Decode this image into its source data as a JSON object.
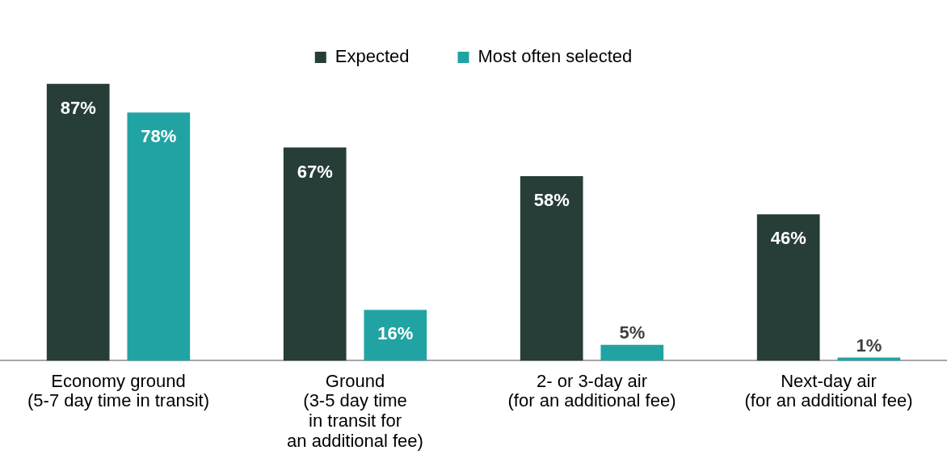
{
  "chart_data": {
    "type": "bar",
    "categories": [
      "Economy ground\n(5-7 day time in transit)",
      "Ground\n(3-5 day time\nin transit for\nan additional fee)",
      "2- or 3-day air\n(for an additional fee)",
      "Next-day air\n(for an additional fee)"
    ],
    "series": [
      {
        "name": "Expected",
        "color": "#263d38",
        "values": [
          87,
          67,
          58,
          46
        ],
        "value_labels": [
          "87%",
          "67%",
          "58%",
          "46%"
        ]
      },
      {
        "name": "Most often selected",
        "color": "#22a3a3",
        "values": [
          78,
          16,
          5,
          1
        ],
        "value_labels": [
          "78%",
          "16%",
          "5%",
          "1%"
        ]
      }
    ],
    "legend": "top",
    "grid": false
  }
}
